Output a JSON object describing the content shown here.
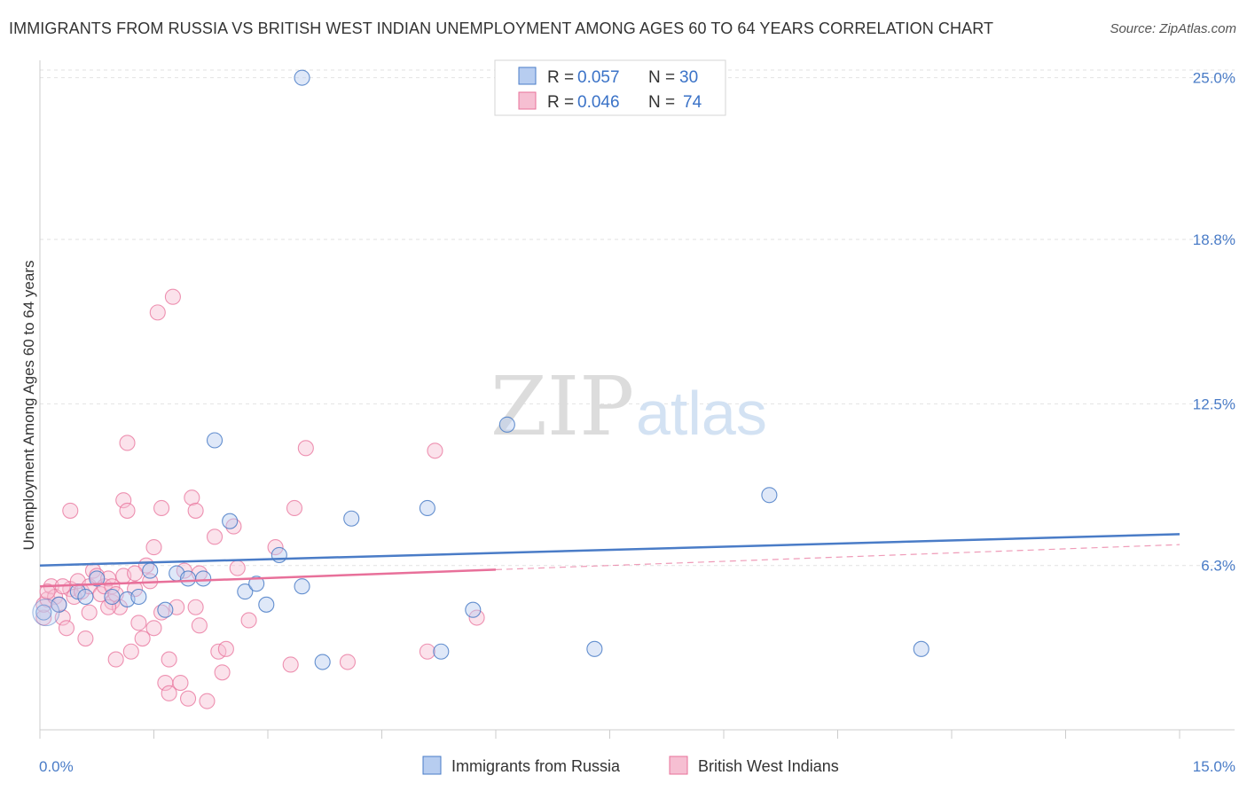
{
  "title": "IMMIGRANTS FROM RUSSIA VS BRITISH WEST INDIAN UNEMPLOYMENT AMONG AGES 60 TO 64 YEARS CORRELATION CHART",
  "source": "Source: ZipAtlas.com",
  "watermark": {
    "zip": "ZIP",
    "atlas": "atlas"
  },
  "colors": {
    "blue": "#4a7cc7",
    "blue_fill": "#b7cdf0",
    "pink": "#e8709a",
    "pink_fill": "#f6bfd2",
    "grid": "#e2e2e2"
  },
  "legend": {
    "rows": [
      {
        "r_label": "R =",
        "r_value": "0.057",
        "n_label": "N =",
        "n_value": "30"
      },
      {
        "r_label": "R =",
        "r_value": "0.046",
        "n_label": "N =",
        "n_value": "74"
      }
    ]
  },
  "bottom_legend": [
    "Immigrants from Russia",
    "British West Indians"
  ],
  "chart_data": {
    "type": "scatter",
    "title": "IMMIGRANTS FROM RUSSIA VS BRITISH WEST INDIAN UNEMPLOYMENT AMONG AGES 60 TO 64 YEARS CORRELATION CHART",
    "xlabel": "",
    "ylabel": "Unemployment Among Ages 60 to 64 years",
    "xlim": [
      0,
      15
    ],
    "ylim": [
      0,
      25.6
    ],
    "x_tick_labels": [
      "0.0%",
      "15.0%"
    ],
    "y_ticks": [
      6.3,
      12.5,
      18.8,
      25.0
    ],
    "y_tick_labels": [
      "6.3%",
      "12.5%",
      "18.8%",
      "25.0%"
    ],
    "series": [
      {
        "name": "Immigrants from Russia",
        "color": "#4a7cc7",
        "trend": {
          "x": [
            0,
            15
          ],
          "y": [
            6.3,
            7.5
          ]
        },
        "points": [
          [
            0.05,
            4.5
          ],
          [
            0.25,
            4.8
          ],
          [
            0.5,
            5.3
          ],
          [
            0.6,
            5.1
          ],
          [
            0.75,
            5.8
          ],
          [
            0.95,
            5.1
          ],
          [
            1.15,
            5.0
          ],
          [
            1.3,
            5.1
          ],
          [
            1.45,
            6.1
          ],
          [
            1.65,
            4.6
          ],
          [
            1.8,
            6.0
          ],
          [
            1.95,
            5.8
          ],
          [
            2.15,
            5.8
          ],
          [
            2.3,
            11.1
          ],
          [
            2.5,
            8.0
          ],
          [
            2.7,
            5.3
          ],
          [
            2.85,
            5.6
          ],
          [
            2.98,
            4.8
          ],
          [
            3.15,
            6.7
          ],
          [
            3.45,
            25.0
          ],
          [
            3.45,
            5.5
          ],
          [
            3.72,
            2.6
          ],
          [
            4.1,
            8.1
          ],
          [
            5.1,
            8.5
          ],
          [
            5.28,
            3.0
          ],
          [
            5.7,
            4.6
          ],
          [
            6.15,
            11.7
          ],
          [
            7.3,
            3.1
          ],
          [
            9.6,
            9.0
          ],
          [
            11.6,
            3.1
          ]
        ]
      },
      {
        "name": "British West Indians",
        "color": "#e8709a",
        "trend": {
          "x": [
            0,
            15
          ],
          "y": [
            5.5,
            7.1
          ]
        },
        "trend_solid_until": 6.0,
        "points": [
          [
            0.05,
            4.3
          ],
          [
            0.05,
            4.8
          ],
          [
            0.1,
            5.0
          ],
          [
            0.15,
            5.5
          ],
          [
            0.2,
            5.1
          ],
          [
            0.25,
            4.8
          ],
          [
            0.3,
            4.3
          ],
          [
            0.35,
            3.9
          ],
          [
            0.4,
            8.4
          ],
          [
            0.4,
            5.4
          ],
          [
            0.45,
            5.1
          ],
          [
            0.5,
            5.7
          ],
          [
            0.55,
            5.3
          ],
          [
            0.6,
            3.5
          ],
          [
            0.65,
            4.5
          ],
          [
            0.65,
            5.5
          ],
          [
            0.7,
            6.1
          ],
          [
            0.75,
            5.9
          ],
          [
            0.8,
            5.2
          ],
          [
            0.85,
            5.5
          ],
          [
            0.9,
            5.8
          ],
          [
            0.95,
            5.5
          ],
          [
            0.95,
            4.9
          ],
          [
            1.0,
            2.7
          ],
          [
            1.0,
            5.2
          ],
          [
            1.05,
            4.7
          ],
          [
            1.1,
            5.9
          ],
          [
            1.1,
            8.8
          ],
          [
            1.15,
            8.4
          ],
          [
            1.15,
            11.0
          ],
          [
            1.2,
            3.0
          ],
          [
            1.25,
            5.4
          ],
          [
            1.3,
            4.1
          ],
          [
            1.35,
            3.5
          ],
          [
            1.4,
            6.3
          ],
          [
            1.45,
            5.7
          ],
          [
            1.5,
            7.0
          ],
          [
            1.5,
            3.9
          ],
          [
            1.55,
            16.0
          ],
          [
            1.6,
            8.5
          ],
          [
            1.65,
            1.8
          ],
          [
            1.7,
            2.7
          ],
          [
            1.7,
            1.4
          ],
          [
            1.75,
            16.6
          ],
          [
            1.8,
            4.7
          ],
          [
            1.85,
            1.8
          ],
          [
            1.9,
            6.1
          ],
          [
            1.95,
            1.2
          ],
          [
            2.0,
            8.9
          ],
          [
            2.05,
            4.7
          ],
          [
            2.05,
            8.4
          ],
          [
            2.1,
            4.0
          ],
          [
            2.2,
            1.1
          ],
          [
            2.3,
            7.4
          ],
          [
            2.35,
            3.0
          ],
          [
            2.4,
            2.2
          ],
          [
            2.45,
            3.1
          ],
          [
            2.55,
            7.8
          ],
          [
            2.6,
            6.2
          ],
          [
            2.75,
            4.2
          ],
          [
            3.1,
            7.0
          ],
          [
            3.3,
            2.5
          ],
          [
            3.35,
            8.5
          ],
          [
            3.5,
            10.8
          ],
          [
            4.05,
            2.6
          ],
          [
            5.1,
            3.0
          ],
          [
            5.2,
            10.7
          ],
          [
            5.75,
            4.3
          ],
          [
            0.1,
            5.3
          ],
          [
            0.3,
            5.5
          ],
          [
            1.25,
            6.0
          ],
          [
            2.1,
            6.0
          ],
          [
            0.9,
            4.7
          ],
          [
            1.6,
            4.5
          ]
        ]
      }
    ]
  }
}
